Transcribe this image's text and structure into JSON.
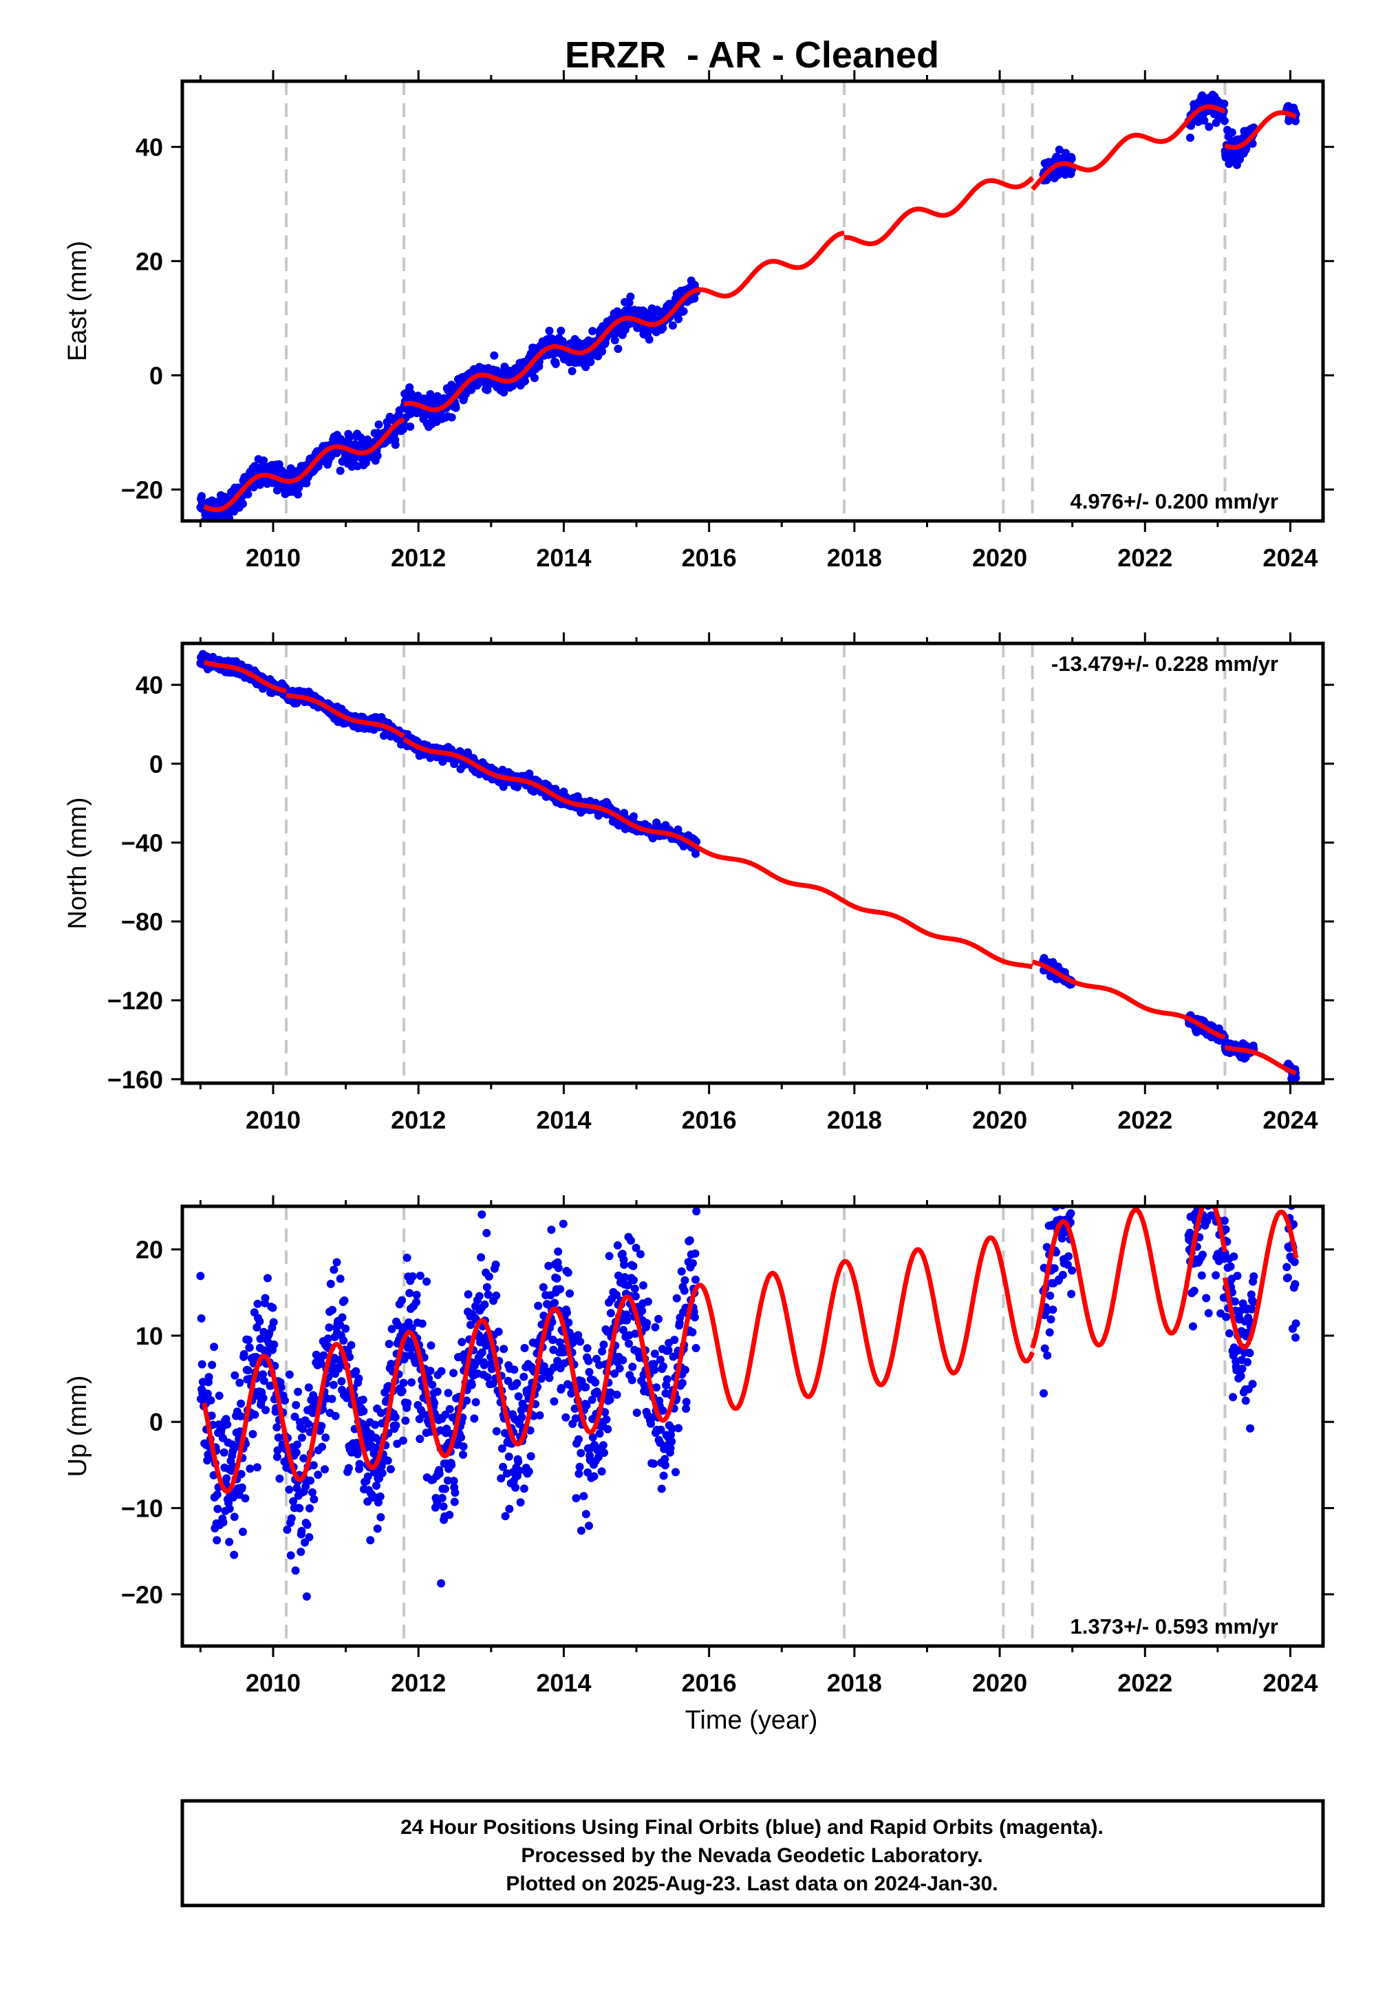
{
  "figure": {
    "title": "ERZR  - AR - Cleaned",
    "x_axis_label": "Time (year)",
    "footer": [
      "24 Hour Positions Using Final Orbits (blue) and Rapid Orbits (magenta).",
      "Processed by the Nevada Geodetic Laboratory.",
      "Plotted on 2025-Aug-23. Last data on 2024-Jan-30."
    ]
  },
  "colors": {
    "observations": "#0000ee",
    "model": "#ff0000",
    "steps": "#c8c8c8",
    "frame": "#000000"
  },
  "chart_data": [
    {
      "type": "scatter",
      "panel": "east",
      "ylabel": "East (mm)",
      "rate_label": "4.976+/- 0.200 mm/yr",
      "rate_position": "bottom-right",
      "xlim": [
        2008.75,
        2024.45
      ],
      "ylim": [
        -25.5,
        51.5
      ],
      "xticks": [
        2010,
        2012,
        2014,
        2016,
        2018,
        2020,
        2022,
        2024
      ],
      "yticks": [
        -20,
        0,
        20,
        40
      ],
      "ytick_labels": [
        "−20",
        "0",
        "20",
        "40"
      ],
      "step_epochs": [
        2010.18,
        2011.8,
        2017.86,
        2020.05,
        2020.45,
        2023.1
      ],
      "observation_segments": [
        [
          2009.0,
          2015.83
        ],
        [
          2020.6,
          2021.0
        ],
        [
          2022.6,
          2023.5
        ],
        [
          2023.95,
          2024.08
        ]
      ],
      "model": {
        "trend_at": [
          2009.05,
          -23.0
        ],
        "rate": 4.976,
        "annual_amp": 1.6,
        "annual_phase": 0.55,
        "offsets": [
          {
            "t": 2011.8,
            "d": 2.6
          },
          {
            "t": 2017.86,
            "d": -0.8
          },
          {
            "t": 2020.45,
            "d": -2.0
          },
          {
            "t": 2023.1,
            "d": -6.0
          }
        ]
      },
      "scatter_sd": 1.2
    },
    {
      "type": "scatter",
      "panel": "north",
      "ylabel": "North (mm)",
      "rate_label": "-13.479+/- 0.228 mm/yr",
      "rate_position": "top-right",
      "xlim": [
        2008.75,
        2024.45
      ],
      "ylim": [
        -162,
        61
      ],
      "xticks": [
        2010,
        2012,
        2014,
        2016,
        2018,
        2020,
        2022,
        2024
      ],
      "yticks": [
        -160,
        -120,
        -80,
        -40,
        0,
        40
      ],
      "ytick_labels": [
        "−160",
        "−120",
        "−80",
        "−40",
        "0",
        "40"
      ],
      "step_epochs": [
        2010.18,
        2011.8,
        2017.86,
        2020.05,
        2020.45,
        2023.1
      ],
      "observation_segments": [
        [
          2009.0,
          2015.83
        ],
        [
          2020.6,
          2021.0
        ],
        [
          2022.6,
          2023.5
        ],
        [
          2023.95,
          2024.08
        ]
      ],
      "model": {
        "trend_at": [
          2009.05,
          53.0
        ],
        "rate": -13.479,
        "annual_amp": 1.4,
        "annual_phase": 0.3,
        "offsets": [
          {
            "t": 2010.18,
            "d": -2.0
          },
          {
            "t": 2011.8,
            "d": -1.5
          },
          {
            "t": 2020.45,
            "d": 2.5
          },
          {
            "t": 2023.1,
            "d": -5.0
          }
        ]
      },
      "scatter_sd": 1.6
    },
    {
      "type": "scatter",
      "panel": "up",
      "ylabel": "Up (mm)",
      "rate_label": "1.373+/- 0.593 mm/yr",
      "rate_position": "bottom-right",
      "xlim": [
        2008.75,
        2024.45
      ],
      "ylim": [
        -26,
        25
      ],
      "xticks": [
        2010,
        2012,
        2014,
        2016,
        2018,
        2020,
        2022,
        2024
      ],
      "yticks": [
        -20,
        -10,
        0,
        10,
        20
      ],
      "ytick_labels": [
        "−20",
        "−10",
        "0",
        "10",
        "20"
      ],
      "step_epochs": [
        2010.18,
        2011.8,
        2017.86,
        2020.05,
        2020.45,
        2023.1
      ],
      "observation_segments": [
        [
          2009.0,
          2015.83
        ],
        [
          2020.6,
          2021.0
        ],
        [
          2022.6,
          2023.5
        ],
        [
          2023.95,
          2024.08
        ]
      ],
      "model": {
        "trend_at": [
          2009.05,
          -1.0
        ],
        "rate": 1.373,
        "annual_amp": 7.5,
        "annual_phase": 0.62,
        "offsets": [
          {
            "t": 2020.45,
            "d": 0.5
          },
          {
            "t": 2023.1,
            "d": -3.0
          }
        ]
      },
      "scatter_sd": 4.5
    }
  ]
}
